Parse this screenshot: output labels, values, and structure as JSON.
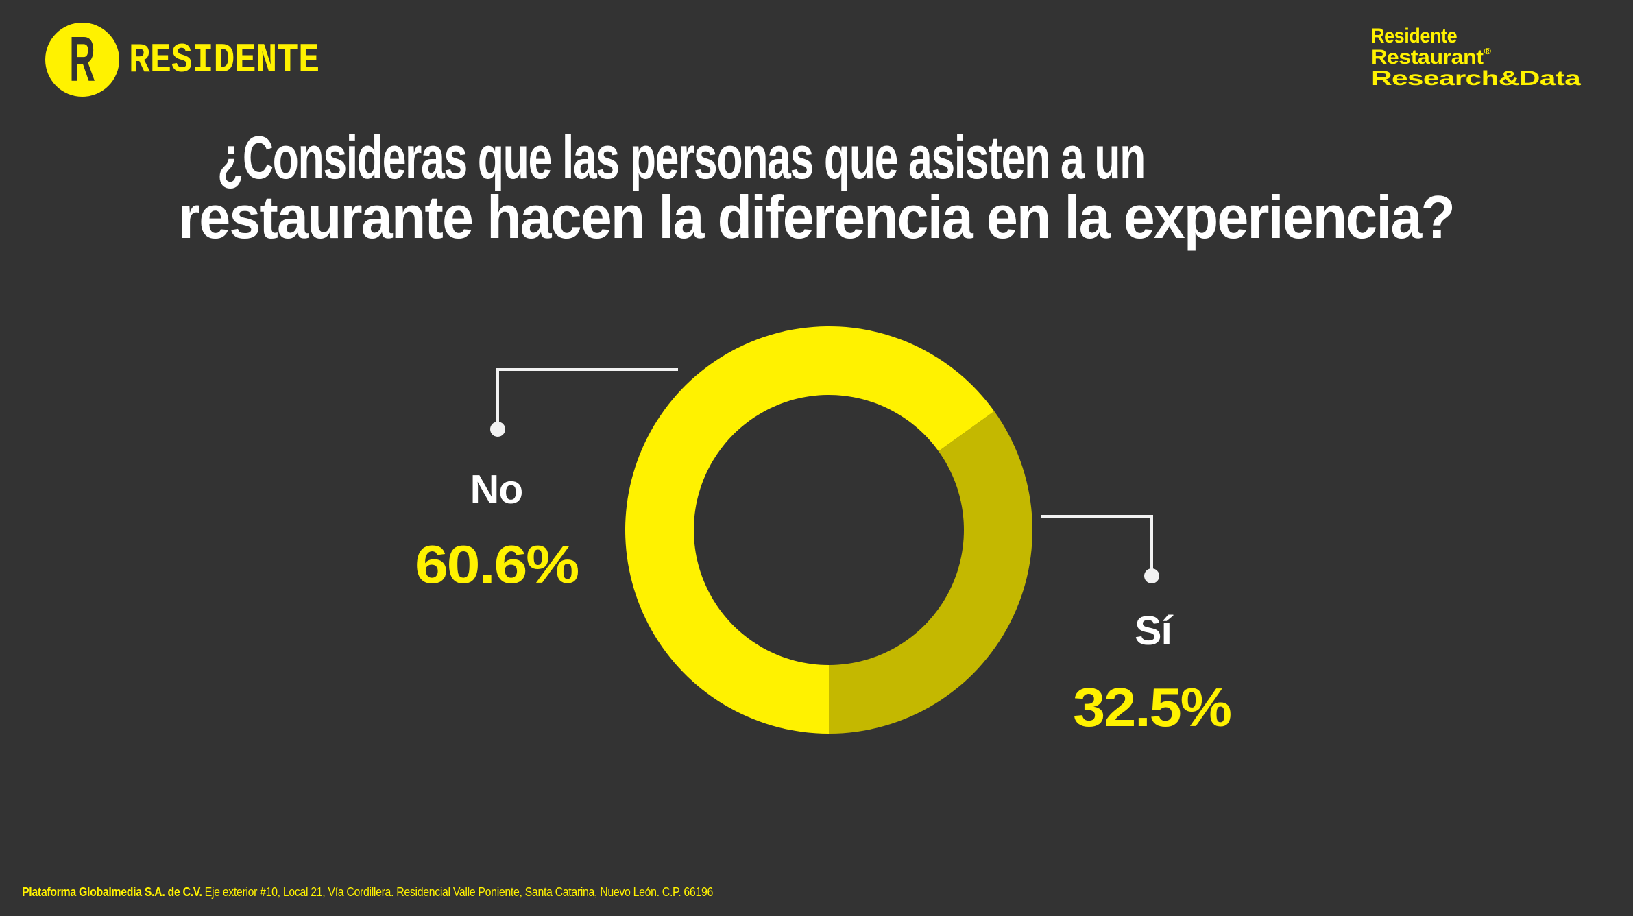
{
  "header": {
    "logo_letter": "R",
    "logo_word": "RESIDENTE",
    "brand_lines": [
      "Residente",
      "Restaurant",
      "Research&Data"
    ],
    "brand_mark": "®"
  },
  "title": {
    "line1": "¿Consideras que las personas que asisten a un",
    "line2": "restaurante hacen la diferencia en la experiencia?"
  },
  "chart_data": {
    "type": "pie",
    "variant": "donut",
    "title": "¿Consideras que las personas que asisten a un restaurante hacen la diferencia en la experiencia?",
    "categories": [
      "No",
      "Sí"
    ],
    "values": [
      60.6,
      32.5
    ],
    "unit": "%",
    "value_labels": [
      "60.6%",
      "32.5%"
    ],
    "colors": [
      "#FFF200",
      "#C4B800"
    ],
    "legend": "none",
    "label_placement": [
      "left",
      "right"
    ]
  },
  "footer": {
    "company": "Plataforma Globalmedia S.A. de C.V.",
    "address": "Eje exterior #10, Local 21, Vía Cordillera. Residencial Valle Poniente, Santa Catarina, Nuevo León. C.P. 66196"
  },
  "colors": {
    "background": "#333333",
    "accent": "#FFF200",
    "text": "#FFFFFF",
    "leader": "#F2F2F2"
  }
}
